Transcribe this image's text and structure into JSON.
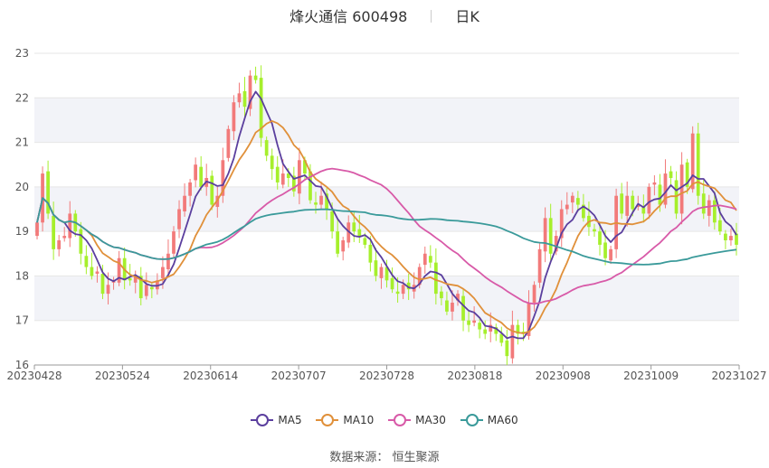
{
  "header": {
    "title": "烽火通信 600498",
    "period": "日K"
  },
  "source": "数据来源： 恒生聚源",
  "colors": {
    "up": "#f27a7a",
    "down": "#a6ef2c",
    "grid": "#e6e6e6",
    "band": "#f2f3f8",
    "axis_text": "#555555"
  },
  "chart_data": {
    "type": "candlestick",
    "ylim": [
      16,
      23
    ],
    "y_ticks": [
      "16",
      "17",
      "18",
      "19",
      "20",
      "21",
      "22",
      "23"
    ],
    "x_ticks": [
      "20230428",
      "20230524",
      "20230614",
      "20230707",
      "20230728",
      "20230818",
      "20230908",
      "20231009",
      "20231027"
    ],
    "legend": [
      {
        "name": "MA5",
        "color": "#5b3f9e"
      },
      {
        "name": "MA10",
        "color": "#e0903a"
      },
      {
        "name": "MA30",
        "color": "#d85aa8"
      },
      {
        "name": "MA60",
        "color": "#3a9a9a"
      }
    ],
    "closes": [
      19.2,
      20.3,
      19.4,
      18.6,
      18.8,
      18.9,
      19.4,
      19.0,
      18.5,
      18.2,
      18.0,
      18.1,
      17.6,
      17.8,
      17.9,
      18.4,
      17.9,
      17.9,
      18.0,
      17.5,
      17.8,
      17.7,
      17.9,
      18.2,
      18.5,
      19.0,
      19.5,
      19.8,
      20.1,
      20.5,
      20.0,
      20.2,
      19.6,
      19.8,
      20.6,
      21.3,
      21.9,
      22.1,
      21.8,
      22.5,
      22.4,
      21.1,
      20.7,
      20.4,
      20.1,
      20.3,
      20.2,
      19.9,
      20.6,
      20.3,
      19.7,
      19.6,
      19.8,
      19.5,
      19.0,
      18.5,
      18.8,
      19.2,
      19.0,
      18.9,
      18.7,
      18.3,
      18.0,
      18.2,
      17.9,
      17.7,
      17.6,
      17.8,
      17.7,
      17.8,
      18.2,
      18.5,
      18.3,
      17.6,
      17.5,
      17.2,
      17.4,
      17.6,
      17.0,
      16.9,
      17.0,
      16.8,
      16.7,
      16.9,
      16.7,
      16.5,
      16.2,
      16.9,
      16.7,
      16.7,
      17.4,
      17.8,
      18.6,
      19.3,
      18.5,
      18.9,
      19.5,
      19.6,
      19.8,
      19.6,
      19.3,
      19.1,
      19.0,
      18.7,
      18.4,
      18.6,
      19.8,
      19.4,
      19.8,
      19.5,
      19.6,
      19.4,
      20.0,
      20.1,
      19.6,
      20.3,
      20.2,
      19.4,
      20.5,
      20.0,
      21.2,
      19.8,
      19.4,
      19.7,
      19.2,
      19.0,
      18.8,
      18.9,
      18.7
    ]
  }
}
